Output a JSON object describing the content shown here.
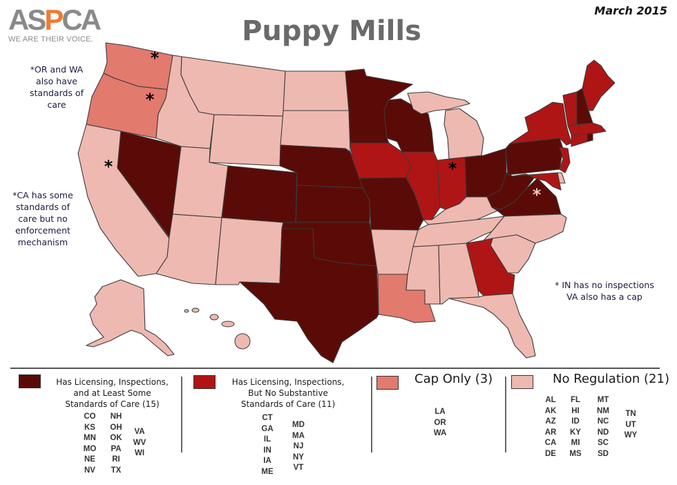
{
  "logo": {
    "name": "ASPCA",
    "tagline": "WE ARE THEIR VOICE."
  },
  "title": "Puppy Mills",
  "date": "March 2015",
  "notes": {
    "or_wa": [
      "*OR and WA",
      "also have",
      "standards of",
      "care"
    ],
    "ca": [
      "*CA has some",
      "standards of",
      "care but no",
      "enforcement",
      "mechanism"
    ],
    "in_va": [
      "* IN has no inspections",
      "VA also has a cap"
    ]
  },
  "colors": {
    "licensing_standards": "#5a0b07",
    "licensing_only": "#b01515",
    "cap_only": "#e27a6e",
    "no_regulation": "#eeb9b1"
  },
  "legend": [
    {
      "key": "licensing_standards",
      "lines": [
        "Has Licensing, Inspections,",
        "and at Least Some",
        "Standards of Care (15)"
      ],
      "count": 15,
      "columns": [
        [
          "CO",
          "KS",
          "MN",
          "MO",
          "NE",
          "NV"
        ],
        [
          "NH",
          "OH",
          "OK",
          "PA",
          "RI",
          "TX"
        ],
        [
          "VA",
          "WV",
          "WI"
        ]
      ]
    },
    {
      "key": "licensing_only",
      "lines": [
        "Has Licensing, Inspections,",
        "But No Substantive",
        "Standards of Care (11)"
      ],
      "count": 11,
      "columns": [
        [
          "CT",
          "GA",
          "IL",
          "IN",
          "IA",
          "ME"
        ],
        [
          "MD",
          "MA",
          "NJ",
          "NY",
          "VT"
        ]
      ]
    },
    {
      "key": "cap_only",
      "lines": [
        "Cap Only (3)"
      ],
      "count": 3,
      "columns": [
        [
          "LA",
          "OR",
          "WA"
        ]
      ]
    },
    {
      "key": "no_regulation",
      "lines": [
        "No Regulation (21)"
      ],
      "count": 21,
      "columns": [
        [
          "AL",
          "AK",
          "AZ",
          "AR",
          "CA",
          "DE"
        ],
        [
          "FL",
          "HI",
          "ID",
          "KY",
          "MI",
          "MS"
        ],
        [
          "MT",
          "NM",
          "NC",
          "ND",
          "SC",
          "SD"
        ],
        [
          "TN",
          "UT",
          "WY"
        ]
      ]
    }
  ],
  "asterisk_states": [
    "WA",
    "OR",
    "CA",
    "IN",
    "VA"
  ]
}
